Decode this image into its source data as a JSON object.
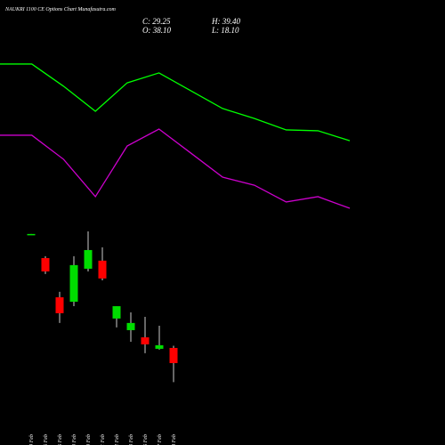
{
  "header": {
    "title": "NAUKRI 1100 CE Options Chart Munafasutra.com",
    "close": "C: 29.25",
    "open": "O: 38.10",
    "high": "H: 39.40",
    "low": "L: 18.10"
  },
  "chart_data": [
    {
      "type": "line",
      "categories": [
        null,
        null,
        null,
        null,
        null,
        null,
        null,
        null,
        null,
        null,
        null,
        null
      ],
      "ylim": [
        -18.6,
        241.4
      ],
      "series": [
        {
          "color": "#00ff00",
          "values": [
            204.0,
            204.0,
            191.0,
            176.4,
            193.0,
            198.8,
            188.4,
            178.0,
            172.2,
            165.5,
            165.0,
            159.2
          ]
        },
        {
          "color": "#cc00cc",
          "values": [
            162.4,
            162.4,
            148.3,
            126.5,
            156.1,
            166.0,
            152.0,
            137.9,
            133.2,
            123.4,
            126.5,
            119.7
          ]
        }
      ]
    },
    {
      "type": "candlestick",
      "categories": [
        "04 Feb",
        "05 Feb",
        "06 Feb",
        "09 Feb",
        "10 Feb",
        "11 Feb",
        "12 Feb",
        "13 Feb",
        "16 Feb",
        "17 Feb",
        "18 Feb"
      ],
      "ylim": [
        -18.6,
        241.4
      ],
      "up_color": "#00dd00",
      "down_color": "#ff0000",
      "open": [
        104.5,
        90.6,
        67.7,
        65.1,
        84.4,
        89.1,
        55.3,
        48.5,
        44.3,
        37.6,
        38.1
      ],
      "high": [
        104.7,
        91.7,
        70.9,
        91.7,
        106.2,
        96.9,
        62.5,
        58.9,
        56.3,
        51.1,
        39.4
      ],
      "low": [
        104.5,
        81.3,
        52.7,
        62.5,
        82.8,
        77.6,
        50.1,
        41.7,
        35.0,
        37.1,
        18.1
      ],
      "close": [
        104.7,
        82.8,
        58.4,
        86.5,
        95.3,
        78.7,
        62.5,
        52.7,
        40.2,
        39.7,
        29.25
      ]
    }
  ]
}
